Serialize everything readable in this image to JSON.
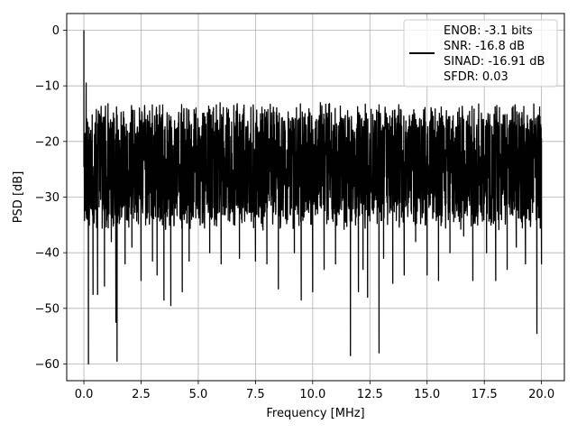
{
  "chart_data": {
    "type": "line",
    "xlabel": "Frequency [MHz]",
    "ylabel": "PSD [dB]",
    "xlim": [
      -0.75,
      21.0
    ],
    "ylim": [
      -63.0,
      3.0
    ],
    "xticks": [
      0.0,
      2.5,
      5.0,
      7.5,
      10.0,
      12.5,
      15.0,
      17.5,
      20.0
    ],
    "xtick_labels": [
      "0.0",
      "2.5",
      "5.0",
      "7.5",
      "10.0",
      "12.5",
      "15.0",
      "17.5",
      "20.0"
    ],
    "yticks": [
      0,
      -10,
      -20,
      -30,
      -40,
      -50,
      -60
    ],
    "ytick_labels": [
      "0",
      "−10",
      "−20",
      "−30",
      "−40",
      "−50",
      "−60"
    ],
    "grid": true,
    "legend_placement": "top-right",
    "legend": [
      "ENOB: -3.1 bits",
      "SNR: -16.8 dB",
      "SINAD: -16.91 dB",
      "SFDR: 0.03"
    ],
    "series": [
      {
        "color": "#000000",
        "noise_band": {
          "x_start": 0.0,
          "x_end": 20.0,
          "upper": -13.0,
          "lower": -36.0,
          "center": -24.0
        },
        "x": [
          0.0,
          0.05,
          0.1,
          0.15,
          0.2,
          0.3,
          0.4,
          0.5,
          0.6,
          0.8,
          0.9,
          1.1,
          1.2,
          1.4,
          1.45,
          1.55,
          1.8,
          2.1,
          2.5,
          2.7,
          3.0,
          3.2,
          3.5,
          3.8,
          4.3,
          4.6,
          5.5,
          6.0,
          6.8,
          7.5,
          8.0,
          8.5,
          9.2,
          9.5,
          10.0,
          10.5,
          11.0,
          11.65,
          12.0,
          12.2,
          12.4,
          12.9,
          13.1,
          13.5,
          14.0,
          14.5,
          15.0,
          15.5,
          16.0,
          16.6,
          17.0,
          17.6,
          18.0,
          18.5,
          18.9,
          19.3,
          19.8,
          20.0
        ],
        "y": [
          0.0,
          -29.0,
          -9.5,
          -34.0,
          -60.0,
          -32.0,
          -47.5,
          -25.0,
          -47.5,
          -30.0,
          -46.0,
          -33.0,
          -38.0,
          -52.5,
          -59.5,
          -30.0,
          -42.0,
          -39.0,
          -45.0,
          -35.0,
          -41.5,
          -44.0,
          -48.5,
          -49.5,
          -47.0,
          -41.5,
          -40.0,
          -42.0,
          -41.0,
          -41.5,
          -42.0,
          -46.5,
          -40.0,
          -48.5,
          -47.0,
          -43.0,
          -42.0,
          -58.5,
          -47.0,
          -43.0,
          -48.0,
          -58.0,
          -41.0,
          -45.5,
          -44.0,
          -38.0,
          -44.0,
          -45.0,
          -40.0,
          -37.0,
          -45.0,
          -40.0,
          -45.0,
          -43.0,
          -39.0,
          -42.0,
          -54.5,
          -42.0
        ]
      }
    ]
  }
}
